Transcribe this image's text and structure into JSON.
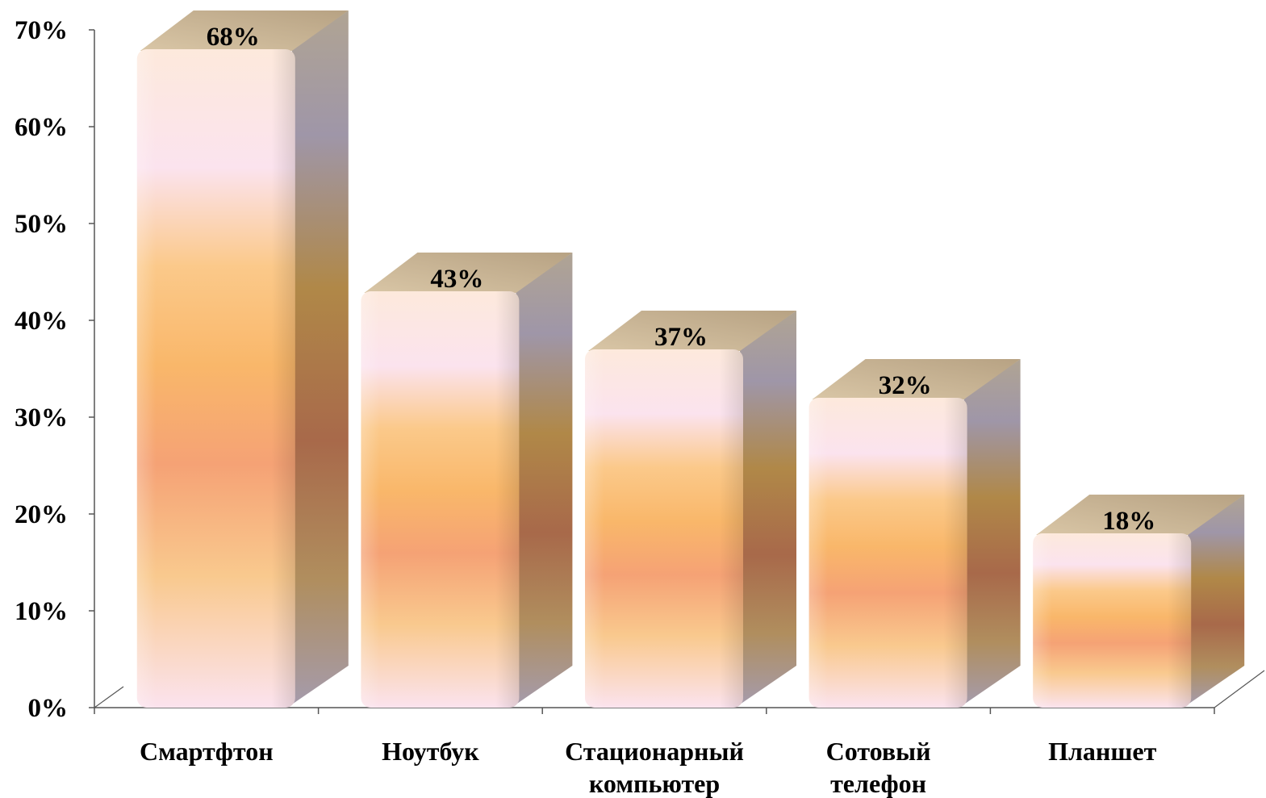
{
  "chart_data": {
    "type": "bar",
    "title": "",
    "xlabel": "",
    "ylabel": "",
    "categories": [
      [
        "Смартфтон"
      ],
      [
        "Ноутбук"
      ],
      [
        "Стационарный",
        "компьютер"
      ],
      [
        "Сотовый",
        "телефон"
      ],
      [
        "Планшет"
      ]
    ],
    "values": [
      68,
      43,
      37,
      32,
      18
    ],
    "data_labels": [
      "68%",
      "43%",
      "37%",
      "32%",
      "18%"
    ],
    "ylim": [
      0,
      70
    ],
    "yticks": [
      {
        "value": 0,
        "label": "0%"
      },
      {
        "value": 10,
        "label": "10%"
      },
      {
        "value": 20,
        "label": "20%"
      },
      {
        "value": 30,
        "label": "30%"
      },
      {
        "value": 40,
        "label": "40%"
      },
      {
        "value": 50,
        "label": "50%"
      },
      {
        "value": 60,
        "label": "60%"
      },
      {
        "value": 70,
        "label": "70%"
      }
    ],
    "style": "3d-cylinder-bars",
    "grid": false,
    "legend": "none",
    "colors": {
      "bar_light": "#fde9dc",
      "bar_pink": "#fbe3ee",
      "bar_orange": "#f9b76a",
      "bar_salmon": "#f5a275",
      "bar_side_top": "#c8a57a",
      "bar_side_mid": "#a8694a",
      "bar_side_purple": "#9f96a8",
      "bar_top": "#c4b093",
      "axis": "#555555"
    }
  }
}
